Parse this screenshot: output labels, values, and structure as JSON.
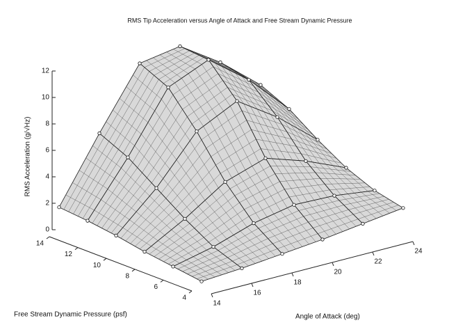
{
  "chart_data": {
    "type": "surface3d",
    "title": "RMS Tip Acceleration versus Angle of Attack and Free Stream Dynamic Pressure",
    "xlabel": "Angle of Attack (deg)",
    "ylabel": "Free Stream Dynamic Pressure (psf)",
    "zlabel": "RMS Acceleration (g/√Hz)",
    "x": [
      14,
      16,
      18,
      20,
      22,
      24
    ],
    "y": [
      4,
      6,
      8,
      10,
      12,
      14
    ],
    "z": [
      [
        0.2,
        0.4,
        0.7,
        1.0,
        1.4,
        1.8
      ],
      [
        0.5,
        1.2,
        2.2,
        2.8,
        2.7,
        2.3
      ],
      [
        0.8,
        2.5,
        4.5,
        5.5,
        4.5,
        3.2
      ],
      [
        1.2,
        4.0,
        7.5,
        9.0,
        7.0,
        4.5
      ],
      [
        1.5,
        5.5,
        10.0,
        11.3,
        9.0,
        6.0
      ],
      [
        1.7,
        6.5,
        11.0,
        11.5,
        9.5,
        7.0
      ]
    ],
    "xlim": [
      14,
      24
    ],
    "ylim": [
      4,
      14
    ],
    "zlim": [
      0,
      12
    ],
    "xticks": [
      14,
      16,
      18,
      20,
      22,
      24
    ],
    "yticks": [
      4,
      6,
      8,
      10,
      12,
      14
    ],
    "zticks": [
      0,
      2,
      4,
      6,
      8,
      10,
      12
    ],
    "color": "#d9d9d9",
    "edgecolor": "#1a1a1a"
  }
}
